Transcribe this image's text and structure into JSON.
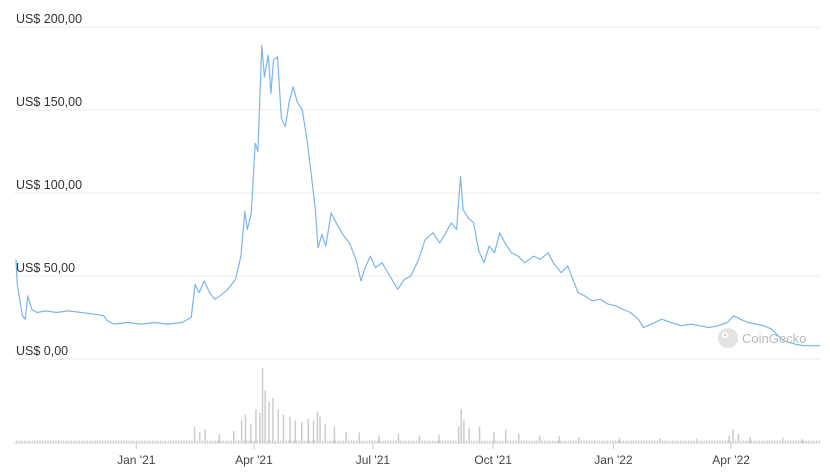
{
  "chart_data": {
    "type": "line",
    "title": "",
    "xlabel": "",
    "ylabel": "",
    "currency_prefix": "US$",
    "ylim": [
      0,
      200
    ],
    "yticks": [
      {
        "value": 0,
        "label": "US$ 0,00"
      },
      {
        "value": 50,
        "label": "US$ 50,00"
      },
      {
        "value": 100,
        "label": "US$ 100,00"
      },
      {
        "value": 150,
        "label": "US$ 150,00"
      },
      {
        "value": 200,
        "label": "US$ 200,00"
      }
    ],
    "xlim": [
      "2020-10-01",
      "2022-06-08"
    ],
    "xticks": [
      {
        "date": "2021-01-01",
        "label": "Jan '21"
      },
      {
        "date": "2021-04-01",
        "label": "Apr '21"
      },
      {
        "date": "2021-07-01",
        "label": "Jul '21"
      },
      {
        "date": "2021-10-01",
        "label": "Oct '21"
      },
      {
        "date": "2022-01-01",
        "label": "Jan '22"
      },
      {
        "date": "2022-04-01",
        "label": "Apr '22"
      }
    ],
    "grid": true,
    "line_color": "#7cb5ec",
    "volume_color": "#cccccc",
    "series": [
      {
        "type": "line",
        "points": [
          [
            "2020-10-01",
            60
          ],
          [
            "2020-10-02",
            45
          ],
          [
            "2020-10-04",
            35
          ],
          [
            "2020-10-06",
            26
          ],
          [
            "2020-10-08",
            24
          ],
          [
            "2020-10-10",
            38
          ],
          [
            "2020-10-13",
            30
          ],
          [
            "2020-10-17",
            28
          ],
          [
            "2020-10-24",
            29
          ],
          [
            "2020-11-01",
            28
          ],
          [
            "2020-11-10",
            29
          ],
          [
            "2020-11-20",
            28
          ],
          [
            "2020-11-30",
            27
          ],
          [
            "2020-12-07",
            26
          ],
          [
            "2020-12-10",
            23
          ],
          [
            "2020-12-15",
            21
          ],
          [
            "2020-12-25",
            22
          ],
          [
            "2021-01-05",
            21
          ],
          [
            "2021-01-15",
            22
          ],
          [
            "2021-01-25",
            21
          ],
          [
            "2021-02-05",
            22
          ],
          [
            "2021-02-12",
            25
          ],
          [
            "2021-02-15",
            45
          ],
          [
            "2021-02-18",
            40
          ],
          [
            "2021-02-22",
            47
          ],
          [
            "2021-02-26",
            40
          ],
          [
            "2021-03-02",
            36
          ],
          [
            "2021-03-06",
            38
          ],
          [
            "2021-03-12",
            42
          ],
          [
            "2021-03-18",
            48
          ],
          [
            "2021-03-22",
            62
          ],
          [
            "2021-03-25",
            89
          ],
          [
            "2021-03-27",
            78
          ],
          [
            "2021-03-30",
            88
          ],
          [
            "2021-04-02",
            130
          ],
          [
            "2021-04-04",
            125
          ],
          [
            "2021-04-07",
            189
          ],
          [
            "2021-04-09",
            170
          ],
          [
            "2021-04-12",
            183
          ],
          [
            "2021-04-14",
            160
          ],
          [
            "2021-04-16",
            180
          ],
          [
            "2021-04-19",
            182
          ],
          [
            "2021-04-22",
            145
          ],
          [
            "2021-04-25",
            140
          ],
          [
            "2021-04-28",
            155
          ],
          [
            "2021-05-01",
            164
          ],
          [
            "2021-05-04",
            155
          ],
          [
            "2021-05-08",
            150
          ],
          [
            "2021-05-12",
            130
          ],
          [
            "2021-05-15",
            110
          ],
          [
            "2021-05-18",
            90
          ],
          [
            "2021-05-20",
            67
          ],
          [
            "2021-05-23",
            75
          ],
          [
            "2021-05-26",
            68
          ],
          [
            "2021-05-30",
            88
          ],
          [
            "2021-06-03",
            82
          ],
          [
            "2021-06-08",
            75
          ],
          [
            "2021-06-13",
            70
          ],
          [
            "2021-06-18",
            60
          ],
          [
            "2021-06-22",
            47
          ],
          [
            "2021-06-25",
            55
          ],
          [
            "2021-06-29",
            62
          ],
          [
            "2021-07-03",
            55
          ],
          [
            "2021-07-08",
            58
          ],
          [
            "2021-07-14",
            50
          ],
          [
            "2021-07-20",
            42
          ],
          [
            "2021-07-25",
            48
          ],
          [
            "2021-07-30",
            50
          ],
          [
            "2021-08-05",
            60
          ],
          [
            "2021-08-10",
            72
          ],
          [
            "2021-08-16",
            76
          ],
          [
            "2021-08-21",
            70
          ],
          [
            "2021-08-25",
            75
          ],
          [
            "2021-08-30",
            82
          ],
          [
            "2021-09-03",
            78
          ],
          [
            "2021-09-06",
            110
          ],
          [
            "2021-09-08",
            90
          ],
          [
            "2021-09-12",
            85
          ],
          [
            "2021-09-16",
            82
          ],
          [
            "2021-09-20",
            65
          ],
          [
            "2021-09-24",
            58
          ],
          [
            "2021-09-28",
            68
          ],
          [
            "2021-10-02",
            64
          ],
          [
            "2021-10-06",
            76
          ],
          [
            "2021-10-10",
            70
          ],
          [
            "2021-10-15",
            64
          ],
          [
            "2021-10-20",
            62
          ],
          [
            "2021-10-25",
            58
          ],
          [
            "2021-11-01",
            62
          ],
          [
            "2021-11-06",
            60
          ],
          [
            "2021-11-12",
            64
          ],
          [
            "2021-11-16",
            58
          ],
          [
            "2021-11-22",
            52
          ],
          [
            "2021-11-27",
            56
          ],
          [
            "2021-12-01",
            48
          ],
          [
            "2021-12-05",
            40
          ],
          [
            "2021-12-10",
            38
          ],
          [
            "2021-12-16",
            35
          ],
          [
            "2021-12-22",
            36
          ],
          [
            "2021-12-28",
            33
          ],
          [
            "2022-01-03",
            32
          ],
          [
            "2022-01-08",
            30
          ],
          [
            "2022-01-14",
            28
          ],
          [
            "2022-01-20",
            24
          ],
          [
            "2022-01-24",
            19
          ],
          [
            "2022-01-30",
            21
          ],
          [
            "2022-02-07",
            24
          ],
          [
            "2022-02-14",
            22
          ],
          [
            "2022-02-22",
            20
          ],
          [
            "2022-03-01",
            21
          ],
          [
            "2022-03-08",
            20
          ],
          [
            "2022-03-15",
            19
          ],
          [
            "2022-03-22",
            20
          ],
          [
            "2022-03-29",
            22
          ],
          [
            "2022-04-03",
            26
          ],
          [
            "2022-04-08",
            24
          ],
          [
            "2022-04-14",
            22
          ],
          [
            "2022-04-20",
            21
          ],
          [
            "2022-04-26",
            20
          ],
          [
            "2022-05-02",
            18
          ],
          [
            "2022-05-07",
            14
          ],
          [
            "2022-05-11",
            11
          ],
          [
            "2022-05-15",
            10
          ],
          [
            "2022-05-20",
            9
          ],
          [
            "2022-05-26",
            8
          ],
          [
            "2022-06-01",
            8
          ],
          [
            "2022-06-08",
            8
          ]
        ]
      },
      {
        "type": "volume",
        "spikes": [
          [
            "2021-02-14",
            0.22
          ],
          [
            "2021-02-18",
            0.14
          ],
          [
            "2021-02-22",
            0.18
          ],
          [
            "2021-03-05",
            0.12
          ],
          [
            "2021-03-16",
            0.16
          ],
          [
            "2021-03-22",
            0.3
          ],
          [
            "2021-03-25",
            0.38
          ],
          [
            "2021-03-29",
            0.25
          ],
          [
            "2021-04-02",
            0.45
          ],
          [
            "2021-04-05",
            0.4
          ],
          [
            "2021-04-07",
            1.0
          ],
          [
            "2021-04-09",
            0.7
          ],
          [
            "2021-04-12",
            0.55
          ],
          [
            "2021-04-15",
            0.6
          ],
          [
            "2021-04-19",
            0.45
          ],
          [
            "2021-04-23",
            0.38
          ],
          [
            "2021-04-28",
            0.35
          ],
          [
            "2021-05-02",
            0.3
          ],
          [
            "2021-05-07",
            0.28
          ],
          [
            "2021-05-12",
            0.32
          ],
          [
            "2021-05-16",
            0.3
          ],
          [
            "2021-05-19",
            0.42
          ],
          [
            "2021-05-21",
            0.35
          ],
          [
            "2021-05-25",
            0.25
          ],
          [
            "2021-06-01",
            0.22
          ],
          [
            "2021-06-10",
            0.15
          ],
          [
            "2021-06-20",
            0.14
          ],
          [
            "2021-07-05",
            0.1
          ],
          [
            "2021-07-20",
            0.12
          ],
          [
            "2021-08-05",
            0.1
          ],
          [
            "2021-08-20",
            0.11
          ],
          [
            "2021-09-04",
            0.22
          ],
          [
            "2021-09-06",
            0.45
          ],
          [
            "2021-09-08",
            0.3
          ],
          [
            "2021-09-12",
            0.2
          ],
          [
            "2021-09-20",
            0.22
          ],
          [
            "2021-10-01",
            0.15
          ],
          [
            "2021-10-10",
            0.18
          ],
          [
            "2021-10-20",
            0.12
          ],
          [
            "2021-11-05",
            0.1
          ],
          [
            "2021-11-20",
            0.09
          ],
          [
            "2021-12-05",
            0.08
          ],
          [
            "2022-01-05",
            0.07
          ],
          [
            "2022-02-05",
            0.06
          ],
          [
            "2022-03-05",
            0.06
          ],
          [
            "2022-03-30",
            0.1
          ],
          [
            "2022-04-02",
            0.18
          ],
          [
            "2022-04-06",
            0.12
          ],
          [
            "2022-04-15",
            0.08
          ],
          [
            "2022-05-10",
            0.07
          ],
          [
            "2022-05-25",
            0.05
          ]
        ]
      }
    ]
  },
  "watermark": {
    "text": "CoinGecko",
    "icon": "coingecko-logo-icon"
  }
}
